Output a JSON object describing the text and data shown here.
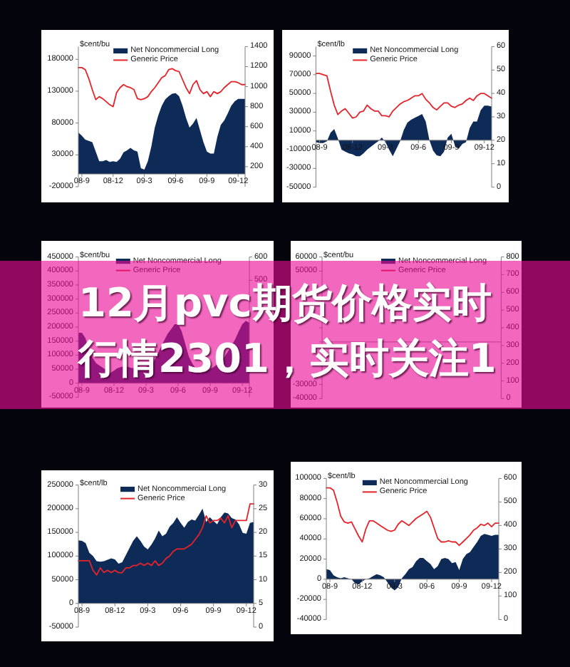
{
  "chart_data": [
    {
      "type": "area",
      "ylabel": "$cent/bu",
      "legend": "top",
      "categories": [
        null,
        "08-9",
        null,
        null,
        null,
        null,
        null,
        null,
        null,
        null,
        "08-12",
        null,
        null,
        null,
        null,
        null,
        null,
        null,
        null,
        "09-3",
        null,
        null,
        null,
        null,
        null,
        null,
        null,
        null,
        "09-6",
        null,
        null,
        null,
        null,
        null,
        null,
        null,
        null,
        "09-9",
        null,
        null,
        null,
        null,
        null,
        null,
        null,
        null,
        "09-12",
        null,
        null
      ],
      "ylim": [
        -20000,
        200000
      ],
      "yticks": [
        -20000,
        30000,
        80000,
        130000,
        180000
      ],
      "y2lim": [
        0,
        1400
      ],
      "y2ticks": [
        200,
        400,
        600,
        800,
        1000,
        1200,
        1400
      ],
      "series": [
        {
          "name": "Net Noncommercial Long",
          "type": "area",
          "color": "#0e2b58",
          "values": [
            65000,
            60000,
            54000,
            52000,
            50000,
            35000,
            20000,
            20000,
            22000,
            19000,
            20000,
            19000,
            24000,
            34000,
            37000,
            41000,
            37000,
            35000,
            9000,
            7000,
            20000,
            43000,
            73000,
            92000,
            107000,
            117000,
            122000,
            126000,
            127000,
            122000,
            107000,
            88000,
            73000,
            79000,
            88000,
            69000,
            50000,
            35000,
            32000,
            32000,
            58000,
            77000,
            84000,
            95000,
            107000,
            114000,
            118000,
            118000,
            118000
          ]
        },
        {
          "name": "Generic Price",
          "type": "line",
          "axis": "y2",
          "color": "#e4232a",
          "values": [
            1190,
            1190,
            1170,
            1080,
            970,
            870,
            900,
            880,
            850,
            820,
            800,
            940,
            990,
            1020,
            1000,
            990,
            970,
            880,
            870,
            880,
            900,
            950,
            990,
            1040,
            1090,
            1110,
            1170,
            1180,
            1160,
            1150,
            1070,
            990,
            930,
            1020,
            1060,
            970,
            930,
            950,
            900,
            950,
            930,
            950,
            990,
            1020,
            1050,
            1050,
            1040,
            1020,
            1020
          ]
        }
      ]
    },
    {
      "type": "area",
      "ylabel": "$cent/lb",
      "legend": "top",
      "categories": [
        null,
        "08-9",
        null,
        null,
        null,
        null,
        null,
        null,
        null,
        null,
        "08-12",
        null,
        null,
        null,
        null,
        null,
        null,
        null,
        null,
        "09-3",
        null,
        null,
        null,
        null,
        null,
        null,
        null,
        null,
        "09-6",
        null,
        null,
        null,
        null,
        null,
        null,
        null,
        null,
        "09-9",
        null,
        null,
        null,
        null,
        null,
        null,
        null,
        null,
        "09-12",
        null,
        null
      ],
      "ylim": [
        -50000,
        100000
      ],
      "yticks": [
        -50000,
        -30000,
        -10000,
        10000,
        30000,
        50000,
        70000,
        90000
      ],
      "y2lim": [
        0,
        60
      ],
      "y2ticks": [
        0,
        10,
        20,
        30,
        40,
        50,
        60
      ],
      "series": [
        {
          "name": "Net Noncommercial Long",
          "type": "area",
          "color": "#0e2b58",
          "values": [
            -2000,
            -3000,
            -3000,
            -1000,
            8000,
            12000,
            2000,
            -10000,
            -12000,
            -14000,
            -15000,
            -17000,
            -17000,
            -14000,
            -10000,
            -7000,
            -4000,
            -1000,
            3000,
            -2000,
            -10000,
            -17000,
            -9000,
            -1000,
            11000,
            19000,
            22000,
            24000,
            26000,
            28000,
            20000,
            0,
            -11000,
            -16000,
            -17000,
            -12000,
            3000,
            7000,
            -6000,
            -9000,
            -4000,
            -2000,
            13000,
            20000,
            20000,
            32000,
            37000,
            37000,
            36000
          ]
        },
        {
          "name": "Generic Price",
          "type": "line",
          "axis": "y2",
          "color": "#e4232a",
          "values": [
            48.5,
            48.5,
            48,
            47.5,
            41,
            35,
            31,
            32.5,
            33.5,
            31.5,
            29.5,
            30,
            32,
            32.5,
            35,
            33.5,
            32.5,
            32.5,
            30.5,
            30.5,
            30,
            32.5,
            34,
            35.5,
            36.5,
            37,
            38,
            39,
            39,
            40,
            37.5,
            36,
            34,
            33,
            34.5,
            36,
            36,
            34.5,
            34,
            35,
            35.5,
            37,
            38,
            37,
            39,
            40,
            40,
            39,
            38
          ]
        }
      ]
    },
    {
      "type": "area",
      "ylabel": "$cent/bu",
      "legend": "top",
      "categories": [
        null,
        "08-9",
        null,
        null,
        null,
        null,
        null,
        null,
        null,
        null,
        "08-12",
        null,
        null,
        null,
        null,
        null,
        null,
        null,
        null,
        "09-3",
        null,
        null,
        null,
        null,
        null,
        null,
        null,
        null,
        "09-6",
        null,
        null,
        null,
        null,
        null,
        null,
        null,
        null,
        "09-9",
        null,
        null,
        null,
        null,
        null,
        null,
        null,
        null,
        "09-12",
        null,
        null
      ],
      "ylim": [
        -50000,
        450000
      ],
      "yticks": [
        -50000,
        0,
        50000,
        100000,
        150000,
        200000,
        250000,
        300000,
        350000,
        400000,
        450000
      ],
      "y2lim": [
        0,
        600
      ],
      "y2ticks": [
        500,
        600
      ],
      "series": [
        {
          "name": "Net Noncommercial Long",
          "type": "area",
          "color": "#0e2b58",
          "values": [
            180000,
            180000,
            160000,
            114000,
            90000,
            71000,
            62000,
            54000,
            45000,
            37000,
            45000,
            54000,
            58000,
            62000,
            58000,
            54000,
            54000,
            54000,
            47000,
            58000,
            65000,
            73000,
            98000,
            125000,
            150000,
            175000,
            192000,
            210000,
            210000,
            185000,
            140000,
            95000,
            70000,
            52000,
            46000,
            42000,
            44000,
            50000,
            58000,
            68000,
            80000,
            93000,
            113000,
            134000,
            156000,
            185000,
            210000,
            222000,
            215000
          ]
        },
        {
          "name": "Generic Price",
          "type": "line",
          "axis": "y2",
          "color": "#e4232a",
          "values": [
            null,
            null,
            null,
            null,
            null,
            null,
            null,
            null,
            null,
            null,
            null,
            null,
            null,
            null,
            null,
            null,
            null,
            null,
            null,
            null,
            null,
            null,
            null,
            null,
            null,
            null,
            null,
            null,
            null,
            null,
            null,
            null,
            null,
            null,
            null,
            null,
            null,
            null,
            null,
            null,
            null,
            null,
            null,
            null,
            null,
            null,
            null,
            null,
            null
          ]
        }
      ]
    },
    {
      "type": "area",
      "ylabel": "$cent/bu",
      "legend": "top",
      "categories": [
        null,
        null,
        null,
        null,
        null,
        null,
        null,
        null,
        null,
        null,
        null,
        null,
        null,
        null,
        null,
        null,
        null,
        null,
        null,
        null,
        null,
        null,
        null,
        null,
        null,
        null,
        null,
        null,
        null,
        null,
        null,
        null,
        null,
        null,
        null,
        null,
        null,
        null,
        null,
        null,
        null,
        null,
        null,
        null,
        null,
        null,
        null,
        null,
        null
      ],
      "ylim": [
        -40000,
        60000
      ],
      "yticks": [
        -40000,
        -30000,
        {
          "value": 0,
          "label": null
        },
        {
          "value": 10000,
          "label": null
        },
        50000,
        60000
      ],
      "y2lim": [
        0,
        800
      ],
      "y2ticks": [
        0,
        100,
        200,
        300,
        400,
        500,
        600,
        700,
        800
      ],
      "series": [
        {
          "name": "Net Noncommercial Long",
          "type": "area",
          "color": "#0e2b58",
          "values": [
            null,
            null,
            null,
            null,
            null,
            null,
            null,
            null,
            null,
            null,
            null,
            null,
            null,
            null,
            null,
            null,
            null,
            null,
            null,
            null,
            null,
            null,
            null,
            null,
            null,
            null,
            null,
            null,
            null,
            null,
            null,
            null,
            null,
            null,
            null,
            null,
            null,
            null,
            null,
            null,
            null,
            null,
            null,
            null,
            null,
            null,
            null,
            null,
            null
          ]
        },
        {
          "name": "Generic Price",
          "type": "line",
          "axis": "y2",
          "color": "#e4232a",
          "values": [
            null,
            null,
            null,
            null,
            null,
            null,
            null,
            null,
            null,
            null,
            null,
            null,
            null,
            null,
            null,
            null,
            null,
            null,
            null,
            null,
            null,
            null,
            null,
            null,
            null,
            null,
            null,
            null,
            null,
            null,
            null,
            null,
            null,
            null,
            null,
            null,
            null,
            null,
            null,
            null,
            null,
            null,
            null,
            null,
            null,
            null,
            null,
            null,
            null
          ]
        }
      ]
    },
    {
      "type": "other",
      "title": "12月pvc期货价格实时行情2301，实时关注1"
    },
    {
      "type": "area",
      "ylabel": "$cent/lb",
      "legend": "top",
      "categories": [
        null,
        "08-9",
        null,
        null,
        null,
        null,
        null,
        null,
        null,
        null,
        "08-12",
        null,
        null,
        null,
        null,
        null,
        null,
        null,
        null,
        "09-3",
        null,
        null,
        null,
        null,
        null,
        null,
        null,
        null,
        "09-6",
        null,
        null,
        null,
        null,
        null,
        null,
        null,
        null,
        "09-9",
        null,
        null,
        null,
        null,
        null,
        null,
        null,
        null,
        "09-12",
        null,
        null
      ],
      "ylim": [
        -50000,
        250000
      ],
      "yticks": [
        -50000,
        0,
        50000,
        100000,
        150000,
        200000,
        250000
      ],
      "y2lim": [
        0,
        30
      ],
      "y2ticks": [
        0,
        5,
        10,
        15,
        20,
        25,
        30
      ],
      "series": [
        {
          "name": "Net Noncommercial Long",
          "type": "area",
          "color": "#0e2b58",
          "values": [
            133000,
            132000,
            127000,
            107000,
            100000,
            89000,
            88000,
            89000,
            92000,
            95000,
            93000,
            84000,
            87000,
            102000,
            117000,
            132000,
            142000,
            132000,
            120000,
            114000,
            124000,
            137000,
            154000,
            142000,
            147000,
            162000,
            170000,
            182000,
            170000,
            160000,
            172000,
            177000,
            175000,
            187000,
            200000,
            172000,
            182000,
            174000,
            167000,
            182000,
            192000,
            190000,
            180000,
            177000,
            167000,
            149000,
            147000,
            170000,
            172000
          ]
        },
        {
          "name": "Generic Price",
          "type": "line",
          "axis": "y2",
          "color": "#e4232a",
          "values": [
            14,
            14,
            14,
            14,
            12,
            11,
            12.5,
            11.5,
            12,
            11.5,
            12,
            11.5,
            11.5,
            12.5,
            12.5,
            13,
            13,
            13.5,
            13,
            13.5,
            13,
            14,
            13,
            13.5,
            14.5,
            15,
            16,
            16.5,
            16.5,
            16.5,
            17,
            17.5,
            18.5,
            19.5,
            21,
            23.5,
            22,
            22.5,
            22.5,
            23,
            22,
            23.5,
            21,
            22.5,
            22.5,
            22.5,
            22.5,
            26,
            26
          ]
        }
      ]
    },
    {
      "type": "area",
      "ylabel": "$cent/lb",
      "legend": "top",
      "categories": [
        null,
        "08-9",
        null,
        null,
        null,
        null,
        null,
        null,
        null,
        null,
        "08-12",
        null,
        null,
        null,
        null,
        null,
        null,
        null,
        null,
        "09-3",
        null,
        null,
        null,
        null,
        null,
        null,
        null,
        null,
        "09-6",
        null,
        null,
        null,
        null,
        null,
        null,
        null,
        null,
        "09-9",
        null,
        null,
        null,
        null,
        null,
        null,
        null,
        null,
        "09-12",
        null,
        null
      ],
      "ylim": [
        -40000,
        100000
      ],
      "yticks": [
        -40000,
        -20000,
        0,
        20000,
        40000,
        60000,
        80000,
        100000
      ],
      "y2lim": [
        0,
        600
      ],
      "y2ticks": [
        0,
        100,
        200,
        300,
        400,
        500,
        600
      ],
      "series": [
        {
          "name": "Net Noncommercial Long",
          "type": "area",
          "color": "#0e2b58",
          "values": [
            10000,
            9000,
            4000,
            2000,
            1000,
            2000,
            1000,
            0,
            -4000,
            -5000,
            -2000,
            0,
            1000,
            3000,
            5000,
            4000,
            2000,
            -3000,
            -8000,
            -11000,
            -8000,
            1000,
            5000,
            10000,
            12000,
            18000,
            21000,
            21000,
            18000,
            15000,
            10000,
            13000,
            20000,
            21000,
            20000,
            16000,
            17000,
            9000,
            20000,
            25000,
            27000,
            32000,
            37000,
            43000,
            45000,
            44000,
            43000,
            44000,
            44000
          ]
        },
        {
          "name": "Generic Price",
          "type": "line",
          "axis": "y2",
          "color": "#e4232a",
          "values": [
            560,
            560,
            550,
            500,
            440,
            415,
            410,
            415,
            385,
            355,
            330,
            385,
            420,
            420,
            410,
            400,
            390,
            380,
            375,
            380,
            405,
            420,
            410,
            400,
            415,
            430,
            440,
            450,
            460,
            435,
            390,
            345,
            330,
            330,
            335,
            330,
            330,
            315,
            330,
            345,
            360,
            380,
            390,
            405,
            400,
            410,
            395,
            410,
            410
          ]
        }
      ]
    }
  ]
}
